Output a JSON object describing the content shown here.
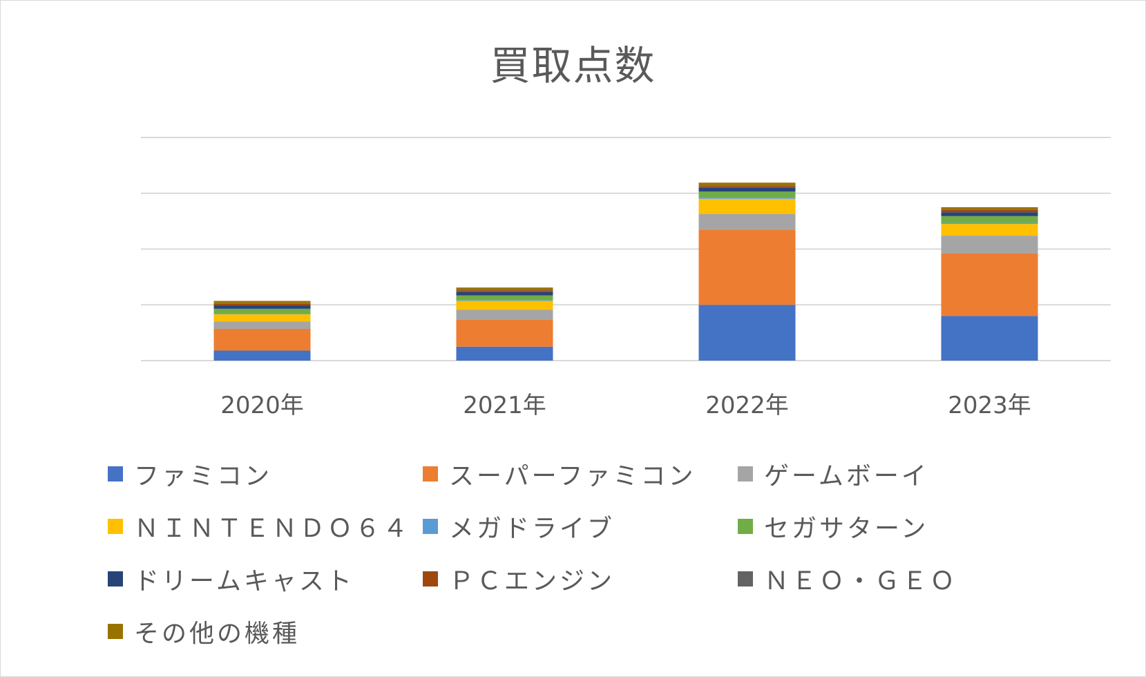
{
  "chart_data": {
    "type": "bar",
    "stacked": true,
    "title": "買取点数",
    "xlabel": "",
    "ylabel": "",
    "ylim": [
      0,
      400
    ],
    "yticks": [
      0,
      100,
      200,
      300,
      400
    ],
    "y_tick_labels_shown": false,
    "grid": true,
    "legend_position": "bottom",
    "categories": [
      "2020年",
      "2021年",
      "2022年",
      "2023年"
    ],
    "series": [
      {
        "name": "ファミコン",
        "color": "#4472C4",
        "values": [
          18,
          25,
          100,
          80
        ]
      },
      {
        "name": "スーパーファミコン",
        "color": "#ED7D31",
        "values": [
          39,
          49,
          135,
          112
        ]
      },
      {
        "name": "ゲームボーイ",
        "color": "#A5A5A5",
        "values": [
          13,
          17,
          28,
          32
        ]
      },
      {
        "name": "ＮＩＮＴＥＮＤＯ６４",
        "color": "#FFC000",
        "values": [
          13,
          16,
          27,
          21
        ]
      },
      {
        "name": "メガドライブ",
        "color": "#5B9BD5",
        "values": [
          1,
          1,
          2,
          2
        ]
      },
      {
        "name": "セガサターン",
        "color": "#70AD47",
        "values": [
          9,
          9,
          11,
          12
        ]
      },
      {
        "name": "ドリームキャスト",
        "color": "#264478",
        "values": [
          6,
          6,
          7,
          7
        ]
      },
      {
        "name": "ＰＣエンジン",
        "color": "#9E480E",
        "values": [
          3,
          3,
          3,
          4
        ]
      },
      {
        "name": "ＮＥＯ・ＧＥＯ",
        "color": "#636363",
        "values": [
          1,
          1,
          1,
          1
        ]
      },
      {
        "name": "その他の機種",
        "color": "#997300",
        "values": [
          4,
          4,
          5,
          4
        ]
      }
    ]
  }
}
